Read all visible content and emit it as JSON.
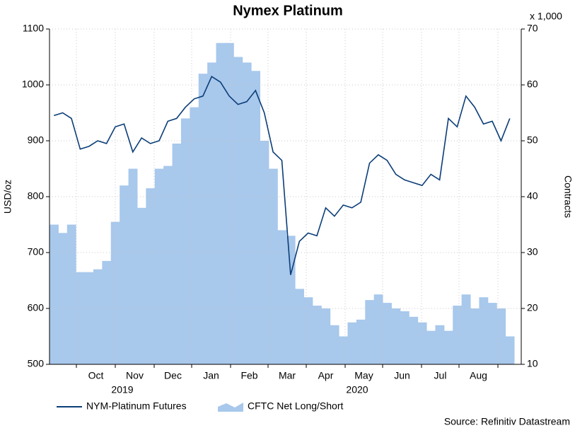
{
  "chart_data": {
    "type": "line",
    "title": "Nymex Platinum",
    "ylabel": "USD/oz",
    "y2label": "Contracts",
    "y2unit": "x 1,000",
    "source": "Source: Refinitiv Datastream",
    "month_labels": [
      "Oct",
      "Nov",
      "Dec",
      "Jan",
      "Feb",
      "Mar",
      "Apr",
      "May",
      "Jun",
      "Jul",
      "Aug"
    ],
    "year_labels": [
      "2019",
      "2020"
    ],
    "ylim": [
      500,
      1100
    ],
    "yticks": [
      500,
      600,
      700,
      800,
      900,
      1000,
      1100
    ],
    "y2lim": [
      10,
      70
    ],
    "y2ticks": [
      10,
      20,
      30,
      40,
      50,
      60,
      70
    ],
    "grid": true,
    "series": [
      {
        "name": "NYM-Platinum Futures",
        "type": "line",
        "color": "#0b3d78",
        "values": [
          945,
          950,
          940,
          885,
          890,
          900,
          895,
          925,
          930,
          880,
          905,
          895,
          900,
          935,
          940,
          960,
          975,
          980,
          1015,
          1005,
          980,
          965,
          970,
          990,
          950,
          880,
          865,
          660,
          720,
          735,
          730,
          780,
          765,
          785,
          780,
          790,
          860,
          875,
          865,
          840,
          830,
          825,
          820,
          840,
          830,
          940,
          925,
          980,
          960,
          930,
          935,
          900,
          940
        ]
      },
      {
        "name": "CFTC Net Long/Short",
        "type": "area",
        "axis": "y2",
        "color": "#a8c8ec",
        "values": [
          35,
          33.5,
          35,
          26.5,
          26.5,
          27,
          28.5,
          35.5,
          42,
          45,
          38,
          41.5,
          45,
          45.5,
          49.5,
          54,
          56,
          62,
          64,
          67.5,
          67.5,
          65,
          64,
          62.5,
          50,
          45,
          34,
          33,
          23.5,
          22,
          20.5,
          20,
          17,
          15,
          17.5,
          18,
          21.5,
          22.5,
          21,
          20,
          19.5,
          18.5,
          17.5,
          16,
          17,
          16,
          20.5,
          22.5,
          20,
          22,
          21,
          20,
          15
        ]
      }
    ]
  }
}
